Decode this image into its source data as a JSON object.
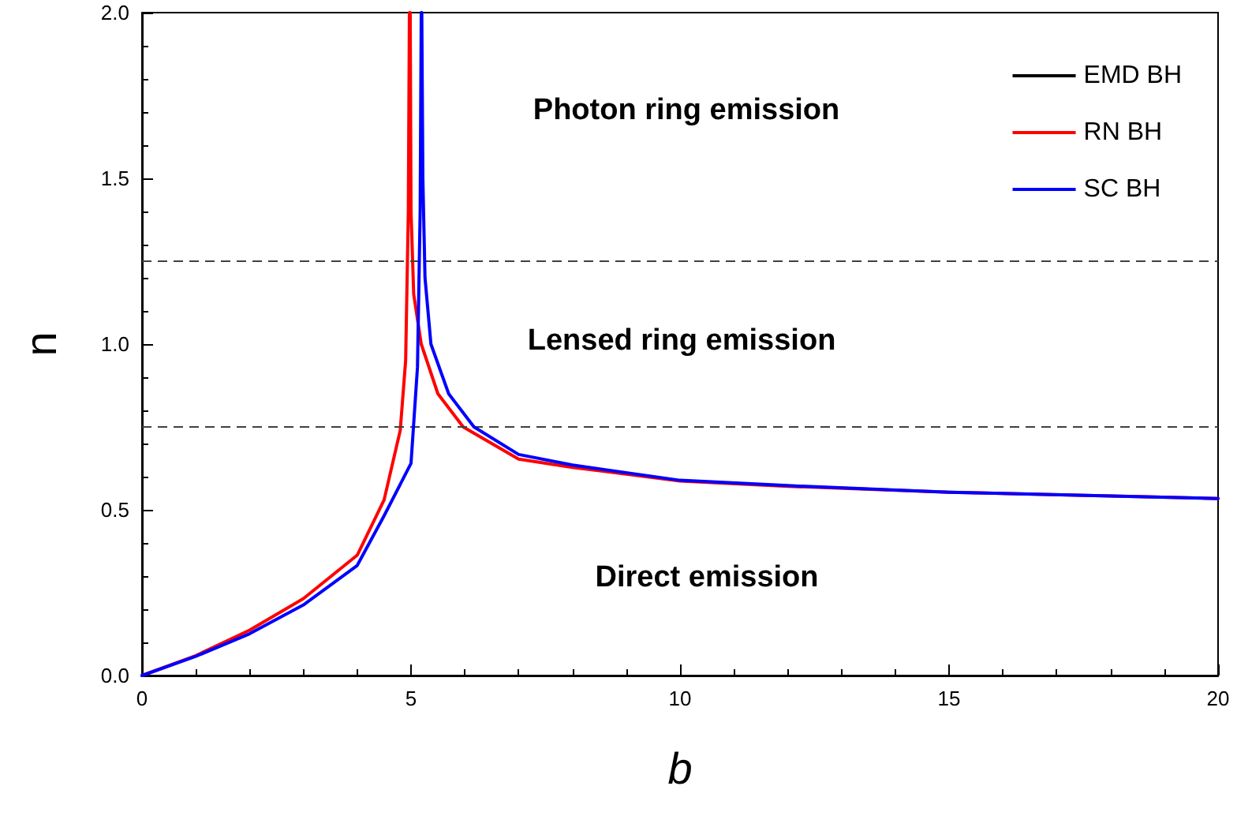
{
  "chart_data": {
    "type": "line",
    "xlabel": "b",
    "ylabel": "n",
    "xlim": [
      0,
      20
    ],
    "xticks": [
      0,
      5,
      10,
      15,
      20
    ],
    "ylim": [
      0,
      2
    ],
    "yticks": [
      {
        "value": 0,
        "label": "0.0"
      },
      {
        "value": 0.5,
        "label": "0.5"
      },
      {
        "value": 1,
        "label": "1.0"
      },
      {
        "value": 1.5,
        "label": "1.5"
      },
      {
        "value": 2,
        "label": "2.0"
      }
    ],
    "grid": false,
    "legend": "top right",
    "marker": "none",
    "line_style": "solid",
    "series": [
      {
        "name": "EMD BH",
        "color": "#000000",
        "values": [
          null
        ]
      },
      {
        "name": "RN BH",
        "color": "#ff0000",
        "x": [
          0,
          1,
          2,
          3,
          4,
          4.5,
          4.8,
          4.9,
          4.95,
          4.97,
          4.978,
          4.985,
          5.0,
          5.05,
          5.19,
          5.5,
          5.97,
          7,
          8,
          10,
          12,
          15,
          20
        ],
        "values": [
          0,
          0.06,
          0.137,
          0.232,
          0.363,
          0.53,
          0.74,
          0.95,
          1.4,
          2.0,
          null,
          2.0,
          1.4,
          1.15,
          1.0,
          0.85,
          0.75,
          0.653,
          0.628,
          0.587,
          0.571,
          0.553,
          0.534
        ]
      },
      {
        "name": "SC BH",
        "color": "#0000ff",
        "x": [
          0,
          1,
          2,
          3,
          4,
          4.5,
          5.0,
          5.12,
          5.17,
          5.19,
          5.196,
          5.2,
          5.22,
          5.26,
          5.37,
          5.7,
          6.17,
          7,
          8,
          10,
          12,
          15,
          20
        ],
        "values": [
          0,
          0.058,
          0.126,
          0.213,
          0.332,
          0.482,
          0.64,
          0.93,
          1.4,
          2.0,
          null,
          2.0,
          1.5,
          1.2,
          1.0,
          0.85,
          0.75,
          0.667,
          0.635,
          0.589,
          0.573,
          0.553,
          0.534
        ]
      }
    ],
    "ref_lines": [
      {
        "axis": "y",
        "value": 1.25,
        "color": "#404040",
        "line_style": "dashed"
      },
      {
        "axis": "y",
        "value": 0.75,
        "color": "#404040",
        "line_style": "dashed"
      }
    ],
    "annotations": [
      "Photon ring emission",
      "Lensed ring emission",
      "Direct emission"
    ]
  }
}
